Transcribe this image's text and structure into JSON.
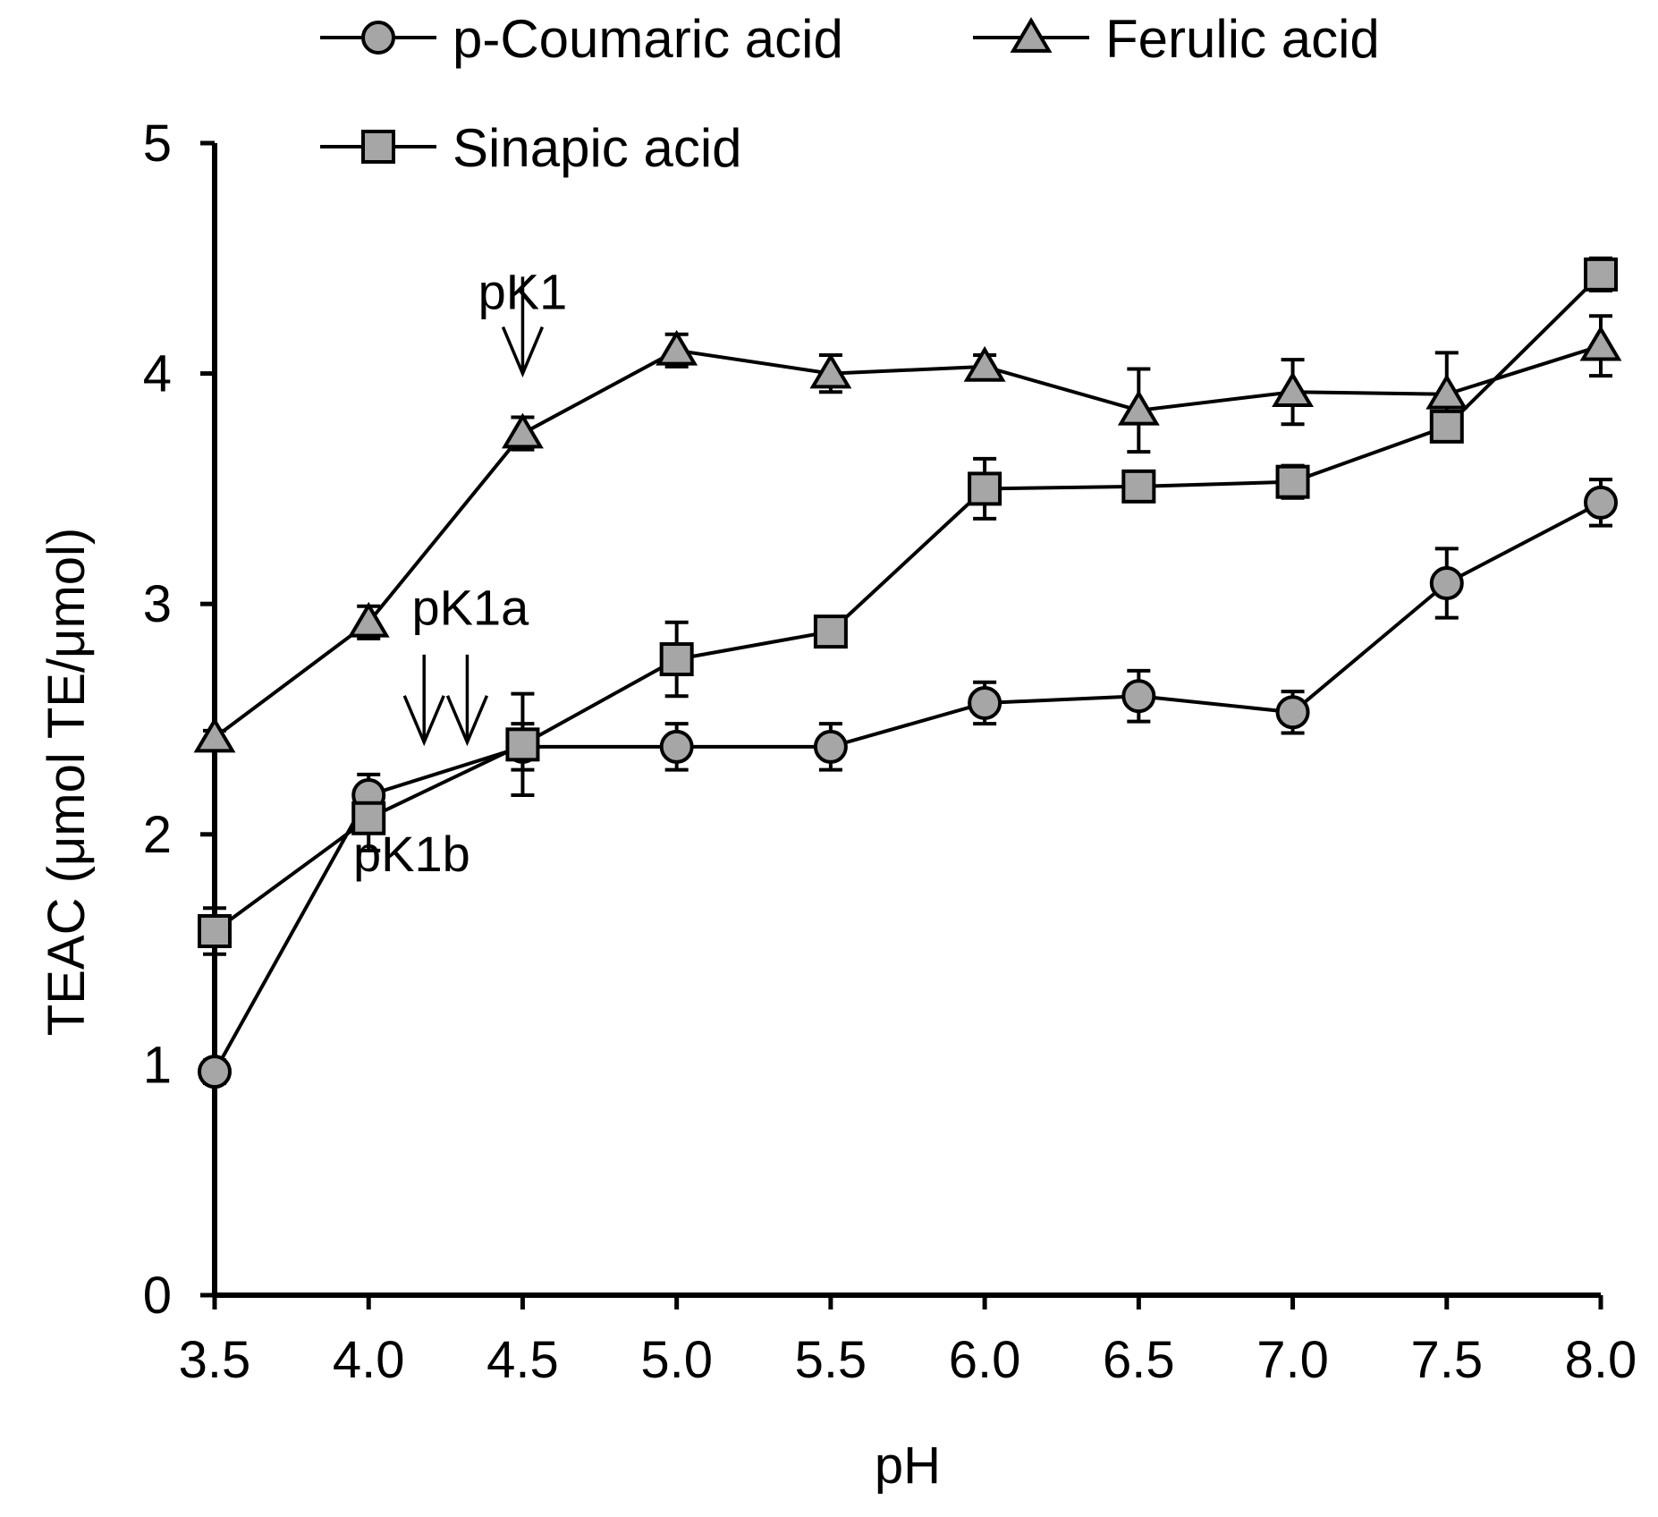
{
  "chart_data": {
    "type": "line",
    "xlabel": "pH",
    "ylabel": "TEAC (μmol TE/μmol)",
    "xlim": [
      3.5,
      8.0
    ],
    "ylim": [
      0,
      5
    ],
    "x_ticks": [
      "3.5",
      "4.0",
      "4.5",
      "5.0",
      "5.5",
      "6.0",
      "6.5",
      "7.0",
      "7.5",
      "8.0"
    ],
    "y_ticks": [
      "0",
      "1",
      "2",
      "3",
      "4",
      "5"
    ],
    "grid": false,
    "legend_placement": "top",
    "x": [
      3.5,
      4.0,
      4.5,
      5.0,
      5.5,
      6.0,
      6.5,
      7.0,
      7.5,
      8.0
    ],
    "series": [
      {
        "name": "p-Coumaric acid",
        "marker": "circle",
        "values": [
          0.97,
          2.17,
          2.38,
          2.38,
          2.38,
          2.57,
          2.6,
          2.53,
          3.09,
          3.44
        ],
        "errors": [
          0.05,
          0.09,
          0.1,
          0.1,
          0.1,
          0.09,
          0.11,
          0.09,
          0.15,
          0.1
        ]
      },
      {
        "name": "Ferulic acid",
        "marker": "triangle",
        "values": [
          2.42,
          2.92,
          3.74,
          4.1,
          4.0,
          4.03,
          3.84,
          3.92,
          3.91,
          4.12
        ],
        "errors": [
          0.03,
          0.07,
          0.07,
          0.07,
          0.08,
          0.05,
          0.18,
          0.14,
          0.18,
          0.13
        ]
      },
      {
        "name": "Sinapic acid",
        "marker": "square",
        "values": [
          1.58,
          2.07,
          2.39,
          2.76,
          2.88,
          3.5,
          3.51,
          3.53,
          3.77,
          4.43
        ],
        "errors": [
          0.1,
          0.14,
          0.22,
          0.16,
          0.05,
          0.13,
          0.05,
          0.07,
          0.06,
          0.07
        ]
      }
    ],
    "annotations": [
      {
        "text": "pK1",
        "x": 4.5,
        "y": 4.28,
        "arrow_from": [
          4.5,
          4.42
        ],
        "arrow_to": [
          4.5,
          4.0
        ]
      },
      {
        "text": "pK1a",
        "x": 4.33,
        "y": 2.91,
        "arrow_from": [
          4.32,
          2.78
        ],
        "arrow_to": [
          4.32,
          2.4
        ]
      },
      {
        "text": "pK1b",
        "x": 4.14,
        "y": 1.84,
        "arrow_from": [
          4.18,
          2.78
        ],
        "arrow_to": [
          4.18,
          2.4
        ]
      }
    ],
    "colors": {
      "marker_fill": "#a6a6a6",
      "line": "#000000"
    }
  }
}
